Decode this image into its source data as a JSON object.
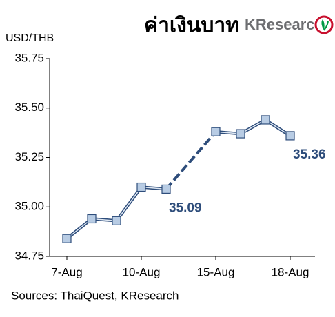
{
  "chart_data": {
    "type": "line",
    "title": "ค่าเงินบาท",
    "logo": "KResearch",
    "y_label": "USD/THB",
    "source": "Sources: ThaiQuest, KResearch",
    "categories": [
      "7-Aug",
      null,
      null,
      "10-Aug",
      null,
      null,
      "15-Aug",
      null,
      null,
      "18-Aug"
    ],
    "series": [
      {
        "name": "USD/THB",
        "color": "#2e4d7b",
        "marker_color": "#b8cce4",
        "values": [
          34.84,
          34.94,
          34.93,
          35.1,
          35.09,
          null,
          35.38,
          35.37,
          35.44,
          35.36
        ],
        "value_labels": [
          null,
          null,
          null,
          null,
          "35.09",
          null,
          null,
          null,
          null,
          "35.36"
        ]
      }
    ],
    "gap_style": "dashed",
    "ylim": [
      34.75,
      35.75
    ],
    "yticks": [
      {
        "value": 34.75,
        "label": "34.75"
      },
      {
        "value": 35.0,
        "label": "35.00"
      },
      {
        "value": 35.25,
        "label": "35.25"
      },
      {
        "value": 35.5,
        "label": "35.50"
      },
      {
        "value": 35.75,
        "label": "35.75"
      }
    ],
    "grid": false
  }
}
